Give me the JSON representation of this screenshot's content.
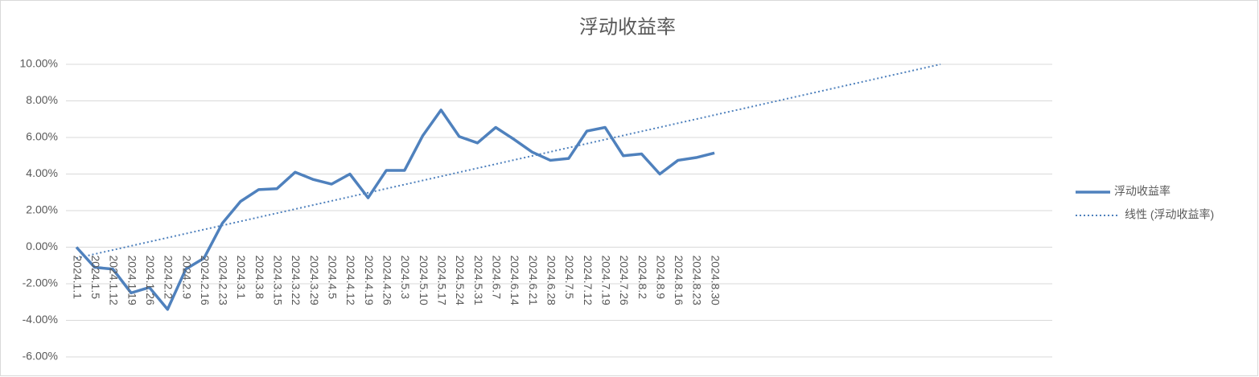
{
  "chart_data": {
    "type": "line",
    "title": "浮动收益率",
    "categories": [
      "2024.1.1",
      "2024.1.5",
      "2024.1.12",
      "2024.1.19",
      "2024.1.26",
      "2024.2.2",
      "2024.2.9",
      "2024.2.16",
      "2024.2.23",
      "2024.3.1",
      "2024.3.8",
      "2024.3.15",
      "2024.3.22",
      "2024.3.29",
      "2024.4.5",
      "2024.4.12",
      "2024.4.19",
      "2024.4.26",
      "2024.5.3",
      "2024.5.10",
      "2024.5.17",
      "2024.5.24",
      "2024.5.31",
      "2024.6.7",
      "2024.6.14",
      "2024.6.21",
      "2024.6.28",
      "2024.7.5",
      "2024.7.12",
      "2024.7.19",
      "2024.7.26",
      "2024.8.2",
      "2024.8.9",
      "2024.8.16",
      "2024.8.23",
      "2024.8.30"
    ],
    "series": [
      {
        "name": "浮动收益率",
        "color": "#4f81bd",
        "values": [
          0,
          -1.1,
          -1.2,
          -2.5,
          -2.2,
          -3.4,
          -1.2,
          -0.6,
          1.3,
          2.5,
          3.15,
          3.2,
          4.1,
          3.7,
          3.45,
          4.0,
          2.7,
          4.2,
          4.2,
          6.1,
          7.5,
          6.05,
          5.7,
          6.55,
          5.9,
          5.2,
          4.75,
          4.85,
          6.35,
          6.55,
          5.0,
          5.1,
          4.0,
          4.75,
          4.9,
          5.15
        ]
      }
    ],
    "trendline": {
      "name": "线性 (浮动收益率)",
      "color": "#4f81bd",
      "x": [
        0,
        47.4
      ],
      "values": [
        -0.6,
        10
      ]
    },
    "ylim": [
      -6,
      10
    ],
    "yticks": [
      {
        "value": -6,
        "label": "-6.00%"
      },
      {
        "value": -4,
        "label": "-4.00%"
      },
      {
        "value": -2,
        "label": "-2.00%"
      },
      {
        "value": 0,
        "label": "0.00%"
      },
      {
        "value": 2,
        "label": "2.00%"
      },
      {
        "value": 4,
        "label": "4.00%"
      },
      {
        "value": 6,
        "label": "6.00%"
      },
      {
        "value": 8,
        "label": "8.00%"
      },
      {
        "value": 10,
        "label": "10.00%"
      }
    ],
    "grid": true,
    "legend": "right"
  }
}
